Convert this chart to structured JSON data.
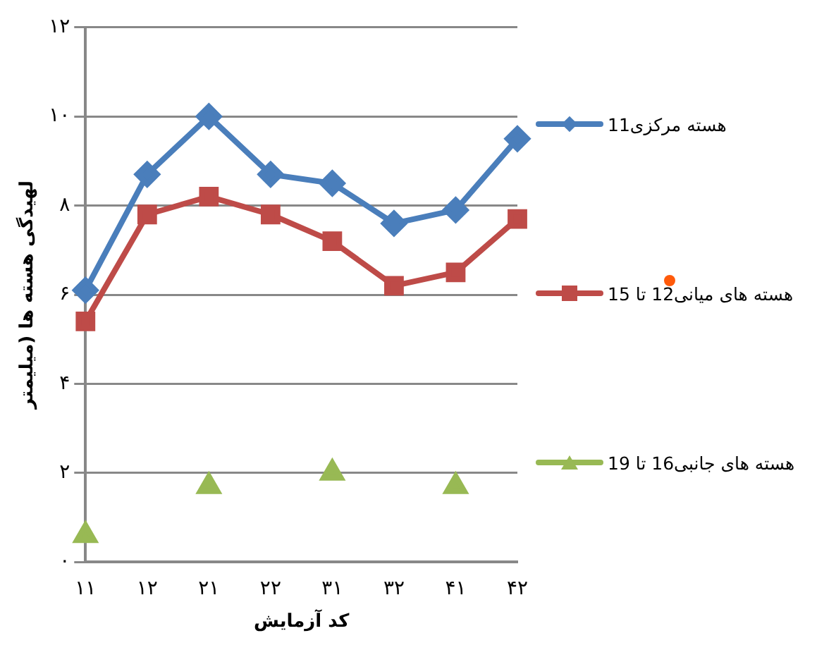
{
  "chart_data": {
    "type": "line",
    "xlabel": "کد آزمایش",
    "ylabel": "لهیدگی هسته ها (میلیمتر",
    "categories": [
      "۱۱",
      "۱۲",
      "۲۱",
      "۲۲",
      "۳۱",
      "۳۲",
      "۴۱",
      "۴۲"
    ],
    "series": [
      {
        "name": "هسته مرکزی11",
        "color": "#4a7ebb",
        "marker": "diamond",
        "values": [
          6.1,
          8.7,
          10.0,
          8.7,
          8.5,
          7.6,
          7.9,
          9.5
        ]
      },
      {
        "name": "هسته های میانی12 تا 15",
        "color": "#be4b48",
        "marker": "square",
        "values": [
          5.4,
          7.8,
          8.2,
          7.8,
          7.2,
          6.2,
          6.5,
          7.7
        ]
      },
      {
        "name": "هسته های جانبی16 تا 19",
        "color": "#98b954",
        "type": "scatter",
        "marker": "triangle",
        "values": [
          0.6,
          null,
          1.7,
          null,
          2.0,
          null,
          1.7,
          null
        ]
      }
    ],
    "ylim": [
      0,
      12
    ],
    "yticks": [
      {
        "value": 0,
        "label": "۰"
      },
      {
        "value": 2,
        "label": "۲"
      },
      {
        "value": 4,
        "label": "۴"
      },
      {
        "value": 6,
        "label": "۶"
      },
      {
        "value": 8,
        "label": "۸"
      },
      {
        "value": 10,
        "label": "۱۰"
      },
      {
        "value": 12,
        "label": "۱۲"
      }
    ],
    "grid": "y",
    "legend": "right"
  }
}
